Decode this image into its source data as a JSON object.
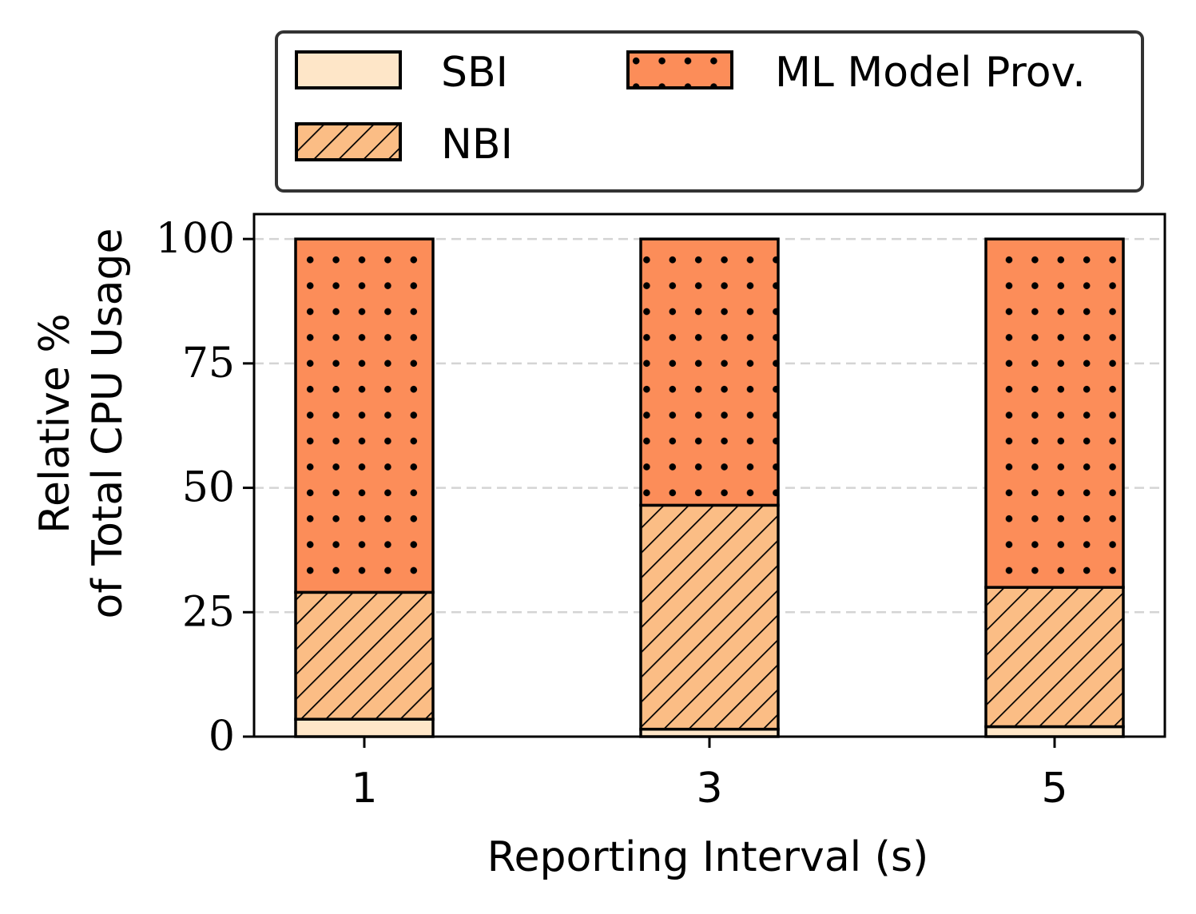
{
  "chart_data": {
    "type": "bar",
    "stacked": true,
    "title": "",
    "xlabel": "Reporting Interval (s)",
    "ylabel_lines": [
      "Relative %",
      "of Total CPU Usage"
    ],
    "categories": [
      "1",
      "3",
      "5"
    ],
    "ylim": [
      0,
      105
    ],
    "yticks": [
      "0",
      "25",
      "50",
      "75",
      "100"
    ],
    "ytick_values": [
      0,
      25,
      50,
      75,
      100
    ],
    "grid": true,
    "legend_position": "top",
    "series": [
      {
        "name": "SBI",
        "values": [
          3.5,
          1.5,
          2.0
        ],
        "color": "#fee6c8",
        "pattern": "none"
      },
      {
        "name": "NBI",
        "values": [
          25.5,
          45.0,
          28.0
        ],
        "color": "#fbbd85",
        "pattern": "hatch"
      },
      {
        "name": "ML Model Prov.",
        "values": [
          71.0,
          53.5,
          70.0
        ],
        "color": "#fc8d59",
        "pattern": "dots"
      }
    ]
  }
}
